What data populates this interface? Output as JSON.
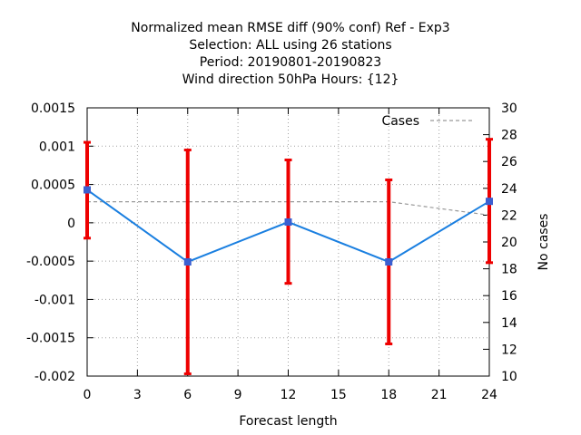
{
  "chart_data": {
    "type": "line",
    "title_lines": [
      "Normalized mean RMSE diff (90% conf) Ref - Exp3",
      "Selection: ALL using    26 stations",
      "Period: 20190801-20190823",
      "Wind direction 50hPa   Hours: {12}"
    ],
    "xlabel": "Forecast length",
    "ylabel": "",
    "y2label": "No cases",
    "xlim": [
      0,
      24
    ],
    "ylim": [
      -0.002,
      0.0015
    ],
    "y2lim": [
      10,
      30
    ],
    "x_ticks": [
      0,
      3,
      6,
      9,
      12,
      15,
      18,
      21,
      24
    ],
    "y_ticks": [
      -0.002,
      -0.0015,
      -0.001,
      -0.0005,
      0,
      0.0005,
      0.001,
      0.0015
    ],
    "y_tick_labels": [
      "-0.002",
      "-0.0015",
      "-0.001",
      "-0.0005",
      "0",
      "0.0005",
      "0.001",
      "0.0015"
    ],
    "y2_ticks": [
      10,
      12,
      14,
      16,
      18,
      20,
      22,
      24,
      26,
      28,
      30
    ],
    "grid": true,
    "legend": {
      "placement": "top-right",
      "entries": [
        "Cases"
      ]
    },
    "series": [
      {
        "name": "diff",
        "color": "#1a7fe0",
        "axis": "left",
        "x": [
          0,
          6,
          12,
          18,
          24
        ],
        "y": [
          0.00043,
          -0.00051,
          1e-05,
          -0.00051,
          0.00028
        ],
        "err_low": [
          -0.0002,
          -0.00197,
          -0.00079,
          -0.00158,
          -0.00052
        ],
        "err_high": [
          0.00105,
          0.00095,
          0.00082,
          0.00056,
          0.00109
        ]
      },
      {
        "name": "Cases",
        "color": "#999999",
        "axis": "right",
        "dashed": true,
        "x": [
          0,
          6,
          12,
          18,
          24
        ],
        "y": [
          23,
          23,
          23,
          23,
          22
        ]
      }
    ],
    "errorbar_color": "#ee0000"
  }
}
